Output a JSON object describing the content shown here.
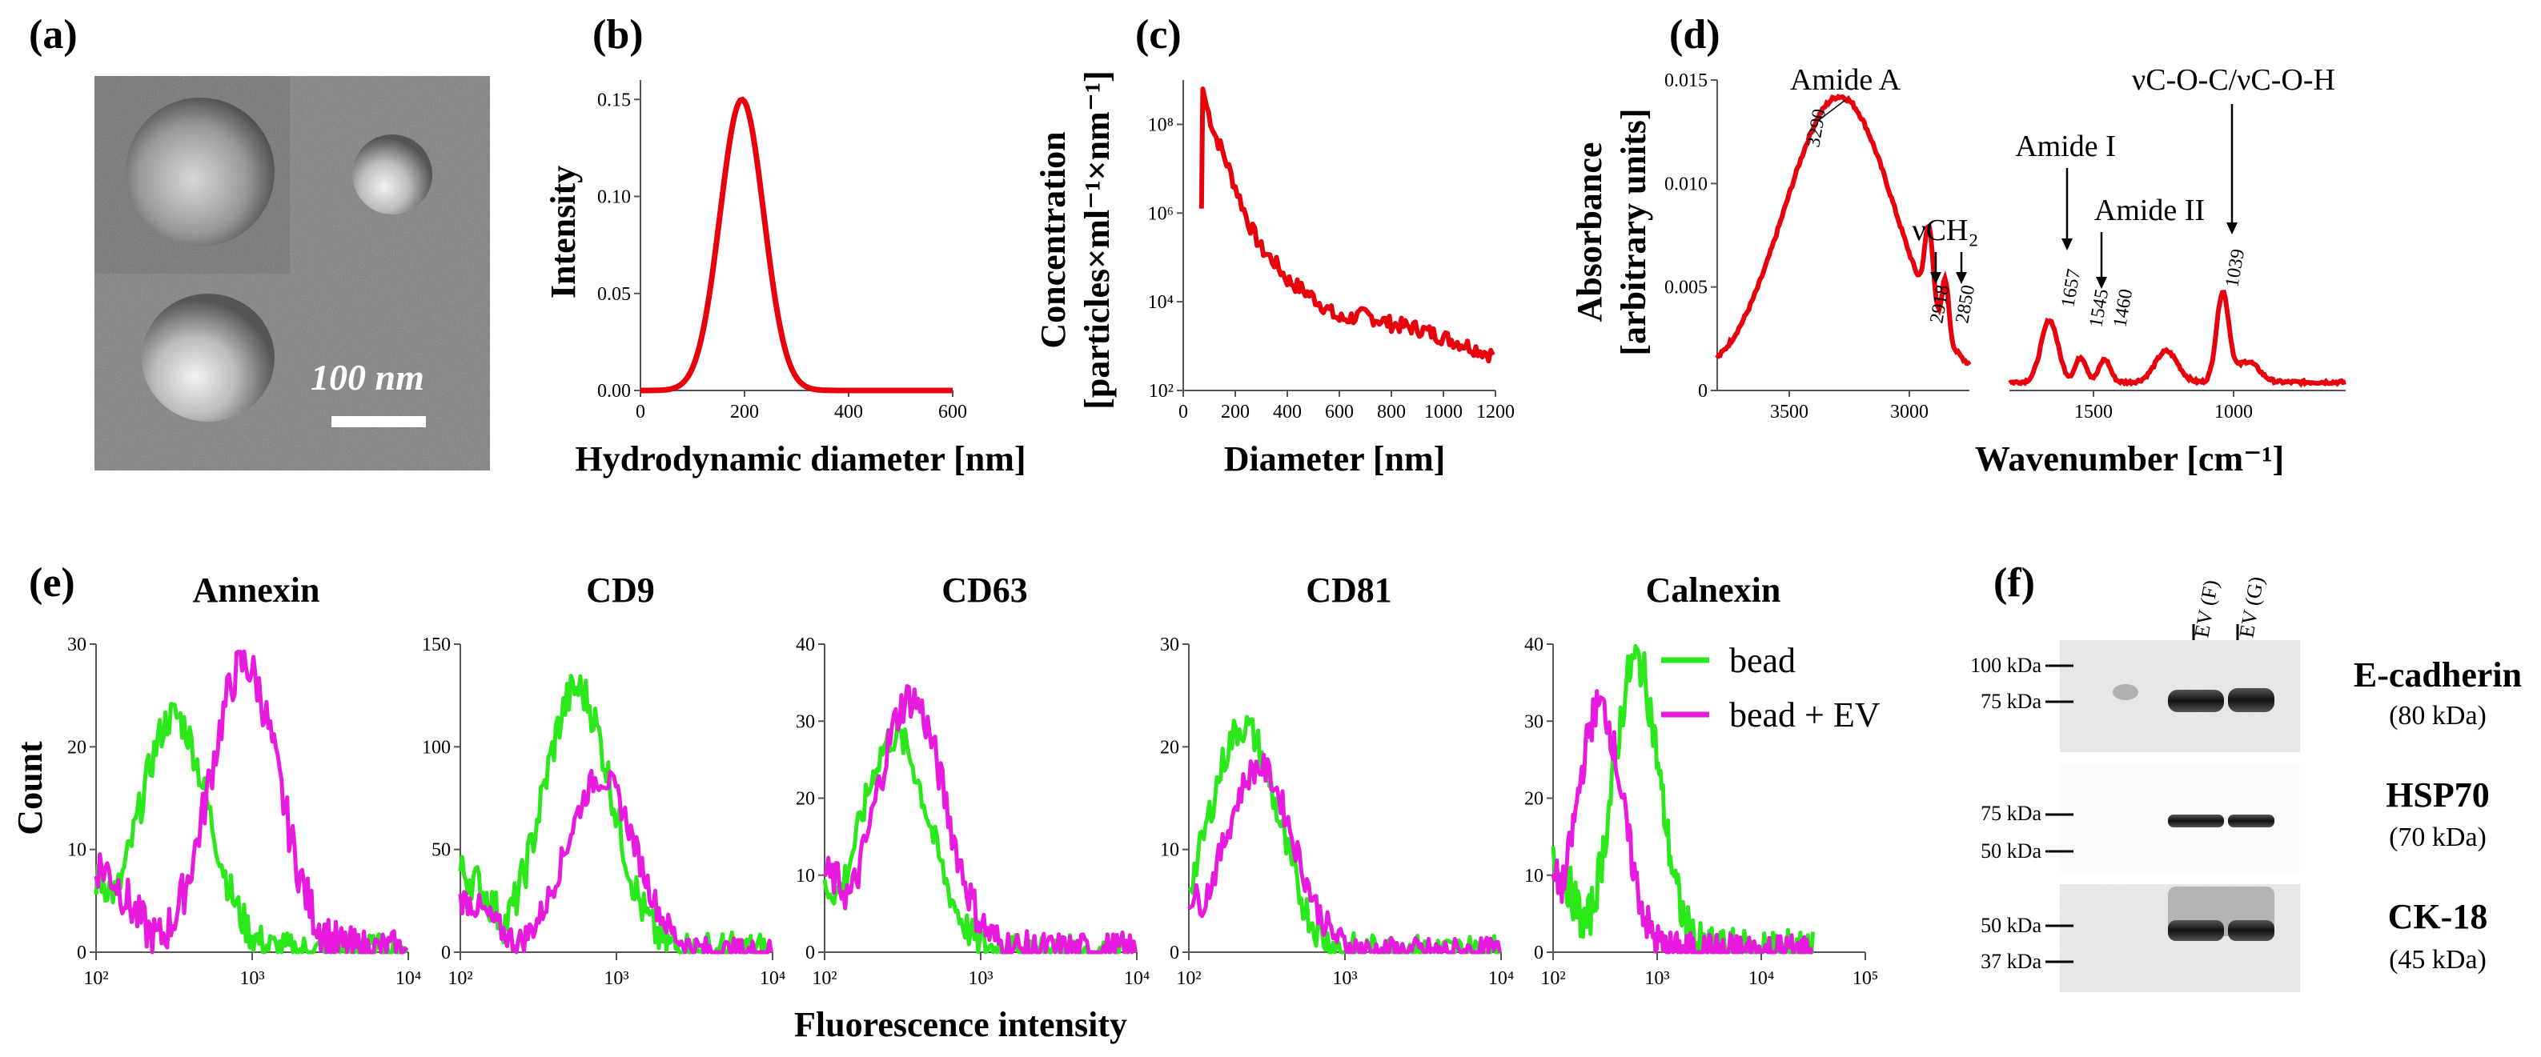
{
  "panels": {
    "a": {
      "letter": "(a)",
      "scale_label": "100 nm"
    },
    "b": {
      "letter": "(b)"
    },
    "c": {
      "letter": "(c)"
    },
    "d": {
      "letter": "(d)"
    },
    "e": {
      "letter": "(e)"
    },
    "f": {
      "letter": "(f)"
    }
  },
  "chart_data": [
    {
      "id": "b",
      "type": "line",
      "xlabel": "Hydrodynamic diameter [nm]",
      "ylabel": "Intensity",
      "xlim": [
        0,
        600
      ],
      "ylim": [
        0,
        0.16
      ],
      "xticks": [
        "0",
        "200",
        "400",
        "600"
      ],
      "yticks": [
        "0.00",
        "0.05",
        "0.10",
        "0.15"
      ],
      "series": [
        {
          "color": "#e8000b",
          "peak_x": 195,
          "peak_y": 0.15,
          "sigma": 42
        }
      ]
    },
    {
      "id": "c",
      "type": "line",
      "xlabel": "Diameter [nm]",
      "ylabel_line1": "Concentration",
      "ylabel_line2": "[particles×ml⁻¹×nm⁻¹]",
      "xlim": [
        0,
        1200
      ],
      "ylim_log10": [
        2,
        9
      ],
      "xticks": [
        "0",
        "200",
        "400",
        "600",
        "800",
        "1000",
        "1200"
      ],
      "yticks": [
        "10²",
        "10⁴",
        "10⁶",
        "10⁸"
      ],
      "series": [
        {
          "color": "#e8000b",
          "x": [
            70,
            75,
            90,
            120,
            150,
            200,
            250,
            300,
            350,
            400,
            500,
            600,
            700,
            800,
            900,
            1000,
            1100,
            1190
          ],
          "y_log10": [
            6.1,
            8.8,
            8.4,
            7.8,
            7.4,
            6.6,
            5.8,
            5.2,
            4.9,
            4.5,
            4.1,
            3.6,
            3.7,
            3.5,
            3.4,
            3.2,
            3.0,
            2.8
          ]
        }
      ]
    },
    {
      "id": "d",
      "type": "line",
      "xlabel": "Wavenumber [cm⁻¹]",
      "ylabel_line1": "Absorbance",
      "ylabel_line2": "[arbitrary units]",
      "xlim": [
        3800,
        600
      ],
      "ylim": [
        0,
        0.015
      ],
      "x_break": [
        2750,
        1800
      ],
      "xticks": [
        "3500",
        "3000",
        "1500",
        "1000"
      ],
      "yticks": [
        "0",
        "0.005",
        "0.010",
        "0.015"
      ],
      "annotations": [
        {
          "label": "Amide A",
          "number": "3290"
        },
        {
          "label": "νCH₂",
          "numbers": [
            "2918",
            "2850"
          ]
        },
        {
          "label": "Amide I",
          "number": "1657"
        },
        {
          "label": "Amide II",
          "numbers": [
            "1545",
            "1460"
          ]
        },
        {
          "label": "νC-O-C/νC-O-H",
          "number": "1039"
        }
      ],
      "series": [
        {
          "color": "#e8000b"
        }
      ]
    },
    {
      "id": "e",
      "type": "line",
      "xlabel": "Fluorescence intensity",
      "ylabel": "Count",
      "legend": [
        "bead",
        "bead +  EV"
      ],
      "colors": {
        "bead": "#2ae81a",
        "bead_ev": "#e81ae0"
      },
      "subplots": [
        {
          "title": "Annexin",
          "ymax": 30,
          "yticks": [
            "0",
            "10",
            "20",
            "30"
          ],
          "xmax_exp": 4,
          "bead_peak": 2.5,
          "bead_h": 23,
          "ev_peak": 2.95,
          "ev_h": 28
        },
        {
          "title": "CD9",
          "ymax": 150,
          "yticks": [
            "0",
            "50",
            "100",
            "150"
          ],
          "xmax_exp": 4,
          "bead_peak": 2.75,
          "bead_h": 128,
          "ev_peak": 2.9,
          "ev_h": 85
        },
        {
          "title": "CD63",
          "ymax": 40,
          "yticks": [
            "0",
            "10",
            "20",
            "30",
            "40"
          ],
          "xmax_exp": 4,
          "bead_peak": 2.45,
          "bead_h": 28,
          "ev_peak": 2.55,
          "ev_h": 33
        },
        {
          "title": "CD81",
          "ymax": 30,
          "yticks": [
            "0",
            "10",
            "20",
            "30"
          ],
          "xmax_exp": 4,
          "bead_peak": 2.35,
          "bead_h": 22,
          "ev_peak": 2.45,
          "ev_h": 18
        },
        {
          "title": "Calnexin",
          "ymax": 40,
          "yticks": [
            "0",
            "10",
            "20",
            "30",
            "40"
          ],
          "xmax_exp": 5,
          "bead_peak": 2.8,
          "bead_h": 38,
          "ev_peak": 2.45,
          "ev_h": 32
        }
      ],
      "xtick_labels": [
        "10²",
        "10³",
        "10⁴",
        "10⁵"
      ]
    }
  ],
  "blot": {
    "lanes": [
      "EV (F)",
      "EV (G)"
    ],
    "rows": [
      {
        "name": "E-cadherin",
        "kda": "(80 kDa)",
        "markers": [
          "100 kDa",
          "75 kDa"
        ]
      },
      {
        "name": "HSP70",
        "kda": "(70 kDa)",
        "markers": [
          "75 kDa",
          "50 kDa"
        ]
      },
      {
        "name": "CK-18",
        "kda": "(45 kDa)",
        "markers": [
          "50 kDa",
          "37 kDa"
        ]
      }
    ]
  }
}
